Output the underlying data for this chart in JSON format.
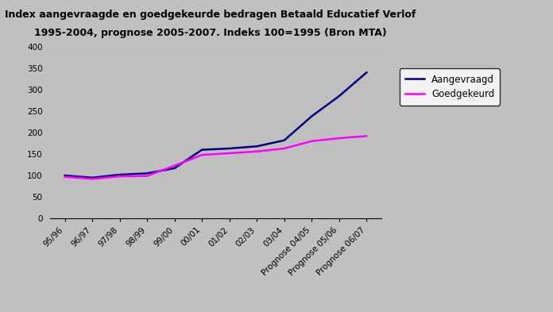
{
  "title_line1": "Index aangevraagde en goedgekeurde bedragen Betaald Educatief Verlof",
  "title_line2": "1995-2004, prognose 2005-2007. Indeks 100=1995 (Bron MTA)",
  "categories": [
    "95/96",
    "96/97",
    "97/98",
    "98/99",
    "99/00",
    "00/01",
    "01/02",
    "02/03",
    "03/04",
    "Prognose 04/05",
    "Prognose 05/06",
    "Prognose 06/07"
  ],
  "aangevraagd": [
    100,
    95,
    102,
    105,
    117,
    160,
    163,
    168,
    182,
    238,
    285,
    340
  ],
  "goedgekeurd": [
    97,
    92,
    98,
    99,
    123,
    148,
    152,
    156,
    163,
    180,
    187,
    192
  ],
  "line_color_aangevraagd": "#000080",
  "line_color_goedgekeurd": "#FF00FF",
  "legend_aangevraagd": "Aangevraagd",
  "legend_goedgekeurd": "Goedgekeurd",
  "ylim": [
    0,
    400
  ],
  "yticks": [
    0,
    50,
    100,
    150,
    200,
    250,
    300,
    350,
    400
  ],
  "plot_bg_color": "#BFBFBF",
  "outer_bg_color": "#C0C0C0",
  "title_fontsize": 9,
  "tick_fontsize": 7.5,
  "legend_fontsize": 8.5
}
